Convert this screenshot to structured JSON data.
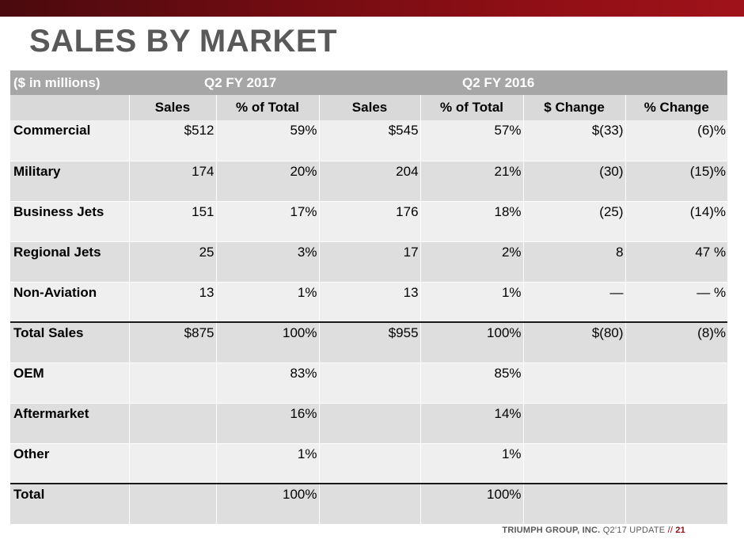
{
  "title": "SALES BY MARKET",
  "table": {
    "units_label": "($ in millions)",
    "period_current": "Q2 FY 2017",
    "period_prior": "Q2 FY 2016",
    "columns": [
      "Sales",
      "% of Total",
      "Sales",
      "% of Total",
      "$ Change",
      "% Change"
    ],
    "rows": [
      {
        "label": "Commercial",
        "cells": [
          "$512",
          "59%",
          "$545",
          "57%",
          "$(33)",
          "(6)%"
        ]
      },
      {
        "label": "Military",
        "cells": [
          "174",
          "20%",
          "204",
          "21%",
          "(30)",
          "(15)%"
        ]
      },
      {
        "label": "Business Jets",
        "cells": [
          "151",
          "17%",
          "176",
          "18%",
          "(25)",
          "(14)%"
        ]
      },
      {
        "label": "Regional Jets",
        "cells": [
          "25",
          "3%",
          "17",
          "2%",
          "8",
          "47 %"
        ]
      },
      {
        "label": "Non-Aviation",
        "cells": [
          "13",
          "1%",
          "13",
          "1%",
          "—",
          "— %"
        ]
      },
      {
        "label": "Total Sales",
        "cells": [
          "$875",
          "100%",
          "$955",
          "100%",
          "$(80)",
          "(8)%"
        ]
      },
      {
        "label": "OEM",
        "cells": [
          "",
          "83%",
          "",
          "85%",
          "",
          ""
        ]
      },
      {
        "label": "Aftermarket",
        "cells": [
          "",
          "16%",
          "",
          "14%",
          "",
          ""
        ]
      },
      {
        "label": "Other",
        "cells": [
          "",
          "1%",
          "",
          "1%",
          "",
          ""
        ]
      },
      {
        "label": "Total",
        "cells": [
          "",
          "100%",
          "",
          "100%",
          "",
          ""
        ]
      }
    ]
  },
  "footer": {
    "company": "TRIUMPH GROUP, INC.",
    "update": "Q2’17 UPDATE",
    "separator": "//",
    "page": "21"
  },
  "colors": {
    "brand_red": "#8e0f15",
    "header_gray": "#a6a6a6",
    "title_gray": "#595959"
  }
}
